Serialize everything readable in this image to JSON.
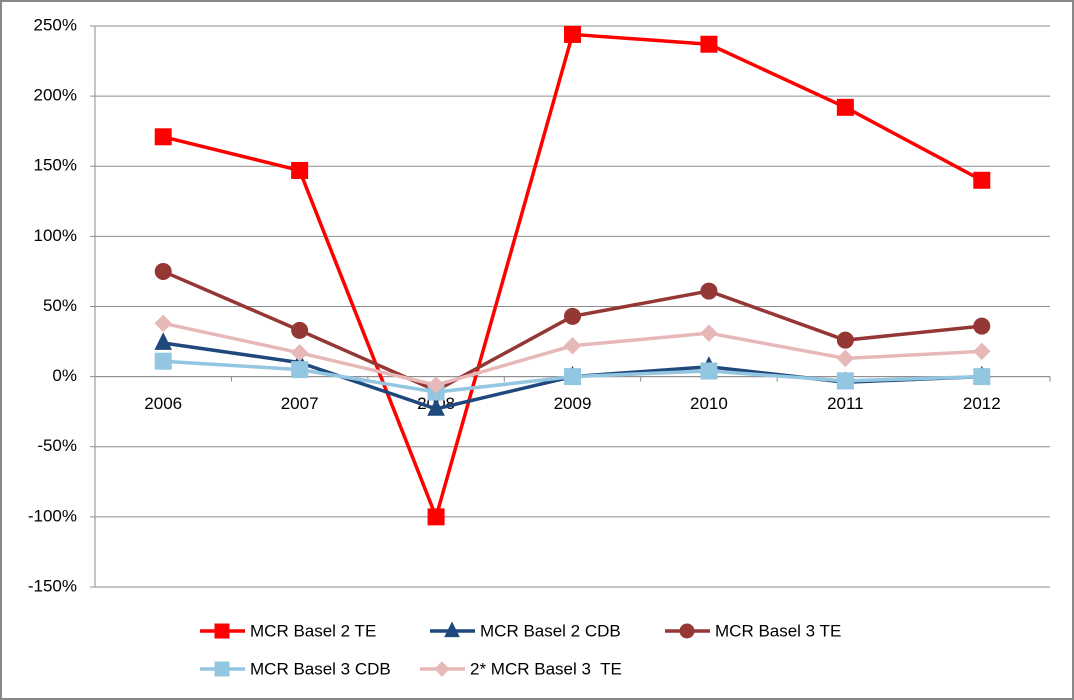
{
  "chart_data": {
    "type": "line",
    "categories": [
      "2006",
      "2007",
      "2008",
      "2009",
      "2010",
      "2011",
      "2012"
    ],
    "series": [
      {
        "name": "MCR Basel 2 TE",
        "color": "#ff0000",
        "marker": "square",
        "values": [
          171,
          147,
          -100,
          244,
          237,
          192,
          140
        ]
      },
      {
        "name": "MCR Basel 2 CDB",
        "color": "#1f497d",
        "marker": "triangle",
        "values": [
          24,
          10,
          -23,
          0,
          7,
          -4,
          0
        ]
      },
      {
        "name": "MCR Basel 3 TE",
        "color": "#953735",
        "marker": "circle",
        "values": [
          75,
          33,
          -10,
          43,
          61,
          26,
          36
        ]
      },
      {
        "name": "MCR Basel 3 CDB",
        "color": "#93c6e0",
        "marker": "square",
        "values": [
          11,
          5,
          -11,
          0,
          4,
          -3,
          0
        ]
      },
      {
        "name": "2* MCR Basel 3  TE",
        "color": "#e6b9b8",
        "marker": "diamond",
        "values": [
          38,
          17,
          -6,
          22,
          31,
          13,
          18
        ]
      }
    ],
    "ylim": [
      -150,
      250
    ],
    "yticks": [
      {
        "value": -150,
        "label": "-150%"
      },
      {
        "value": -100,
        "label": "-100%"
      },
      {
        "value": -50,
        "label": "-50%"
      },
      {
        "value": 0,
        "label": "0%"
      },
      {
        "value": 50,
        "label": "50%"
      },
      {
        "value": 100,
        "label": "100%"
      },
      {
        "value": 150,
        "label": "150%"
      },
      {
        "value": 200,
        "label": "200%"
      },
      {
        "value": 250,
        "label": "250%"
      }
    ],
    "grid": true,
    "legend": "bottom"
  }
}
